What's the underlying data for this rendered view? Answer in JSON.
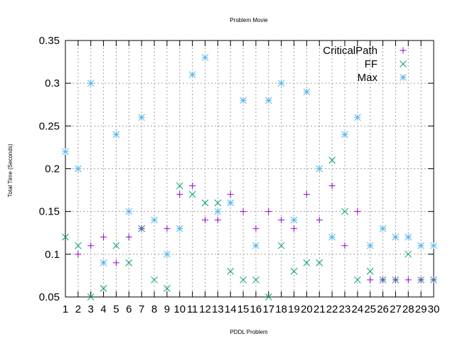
{
  "chart_data": {
    "type": "scatter",
    "title": "Problem Movie",
    "xlabel": "PDDL Problem",
    "ylabel": "Total Time (Seconds)",
    "xlim": [
      1,
      30
    ],
    "ylim": [
      0.05,
      0.35
    ],
    "x_ticks": [
      "1",
      "2",
      "3",
      "4",
      "5",
      "6",
      "7",
      "8",
      "9",
      "10",
      "11",
      "12",
      "13",
      "14",
      "15",
      "16",
      "17",
      "18",
      "19",
      "20",
      "21",
      "22",
      "23",
      "24",
      "25",
      "26",
      "27",
      "28",
      "29",
      "30"
    ],
    "y_ticks": [
      "0.05",
      "0.1",
      "0.15",
      "0.2",
      "0.25",
      "0.3",
      "0.35"
    ],
    "grid": true,
    "legend_position": "top-right",
    "x": [
      1,
      2,
      3,
      4,
      5,
      6,
      7,
      8,
      9,
      10,
      11,
      12,
      13,
      14,
      15,
      16,
      17,
      18,
      19,
      20,
      21,
      22,
      23,
      24,
      25,
      26,
      27,
      28,
      29,
      30
    ],
    "series": [
      {
        "name": "CriticalPath",
        "marker": "plus",
        "color": "#9400d3",
        "values": [
          null,
          0.1,
          0.11,
          0.12,
          0.09,
          0.12,
          0.13,
          null,
          0.13,
          0.17,
          0.18,
          0.14,
          0.14,
          0.17,
          0.15,
          0.13,
          0.15,
          0.14,
          0.13,
          0.17,
          0.14,
          0.18,
          0.11,
          0.15,
          0.07,
          0.07,
          0.07,
          0.07,
          0.07,
          0.07
        ]
      },
      {
        "name": "FF",
        "marker": "cross",
        "color": "#009e73",
        "values": [
          0.12,
          0.11,
          0.05,
          0.06,
          0.11,
          0.09,
          0.13,
          0.07,
          0.06,
          0.18,
          0.17,
          0.16,
          0.16,
          0.08,
          0.07,
          0.07,
          0.05,
          0.11,
          0.08,
          0.09,
          0.09,
          0.21,
          0.15,
          0.07,
          0.08,
          0.07,
          0.07,
          0.1,
          0.07,
          0.07
        ]
      },
      {
        "name": "Max",
        "marker": "star",
        "color": "#56b4e9",
        "values": [
          0.22,
          0.2,
          0.3,
          0.09,
          0.24,
          0.15,
          0.26,
          0.14,
          0.1,
          0.13,
          0.31,
          0.33,
          0.15,
          0.16,
          0.28,
          0.11,
          0.28,
          0.3,
          0.14,
          0.29,
          0.2,
          0.12,
          0.24,
          0.26,
          0.11,
          0.13,
          0.12,
          0.12,
          0.11,
          0.11
        ]
      }
    ]
  }
}
